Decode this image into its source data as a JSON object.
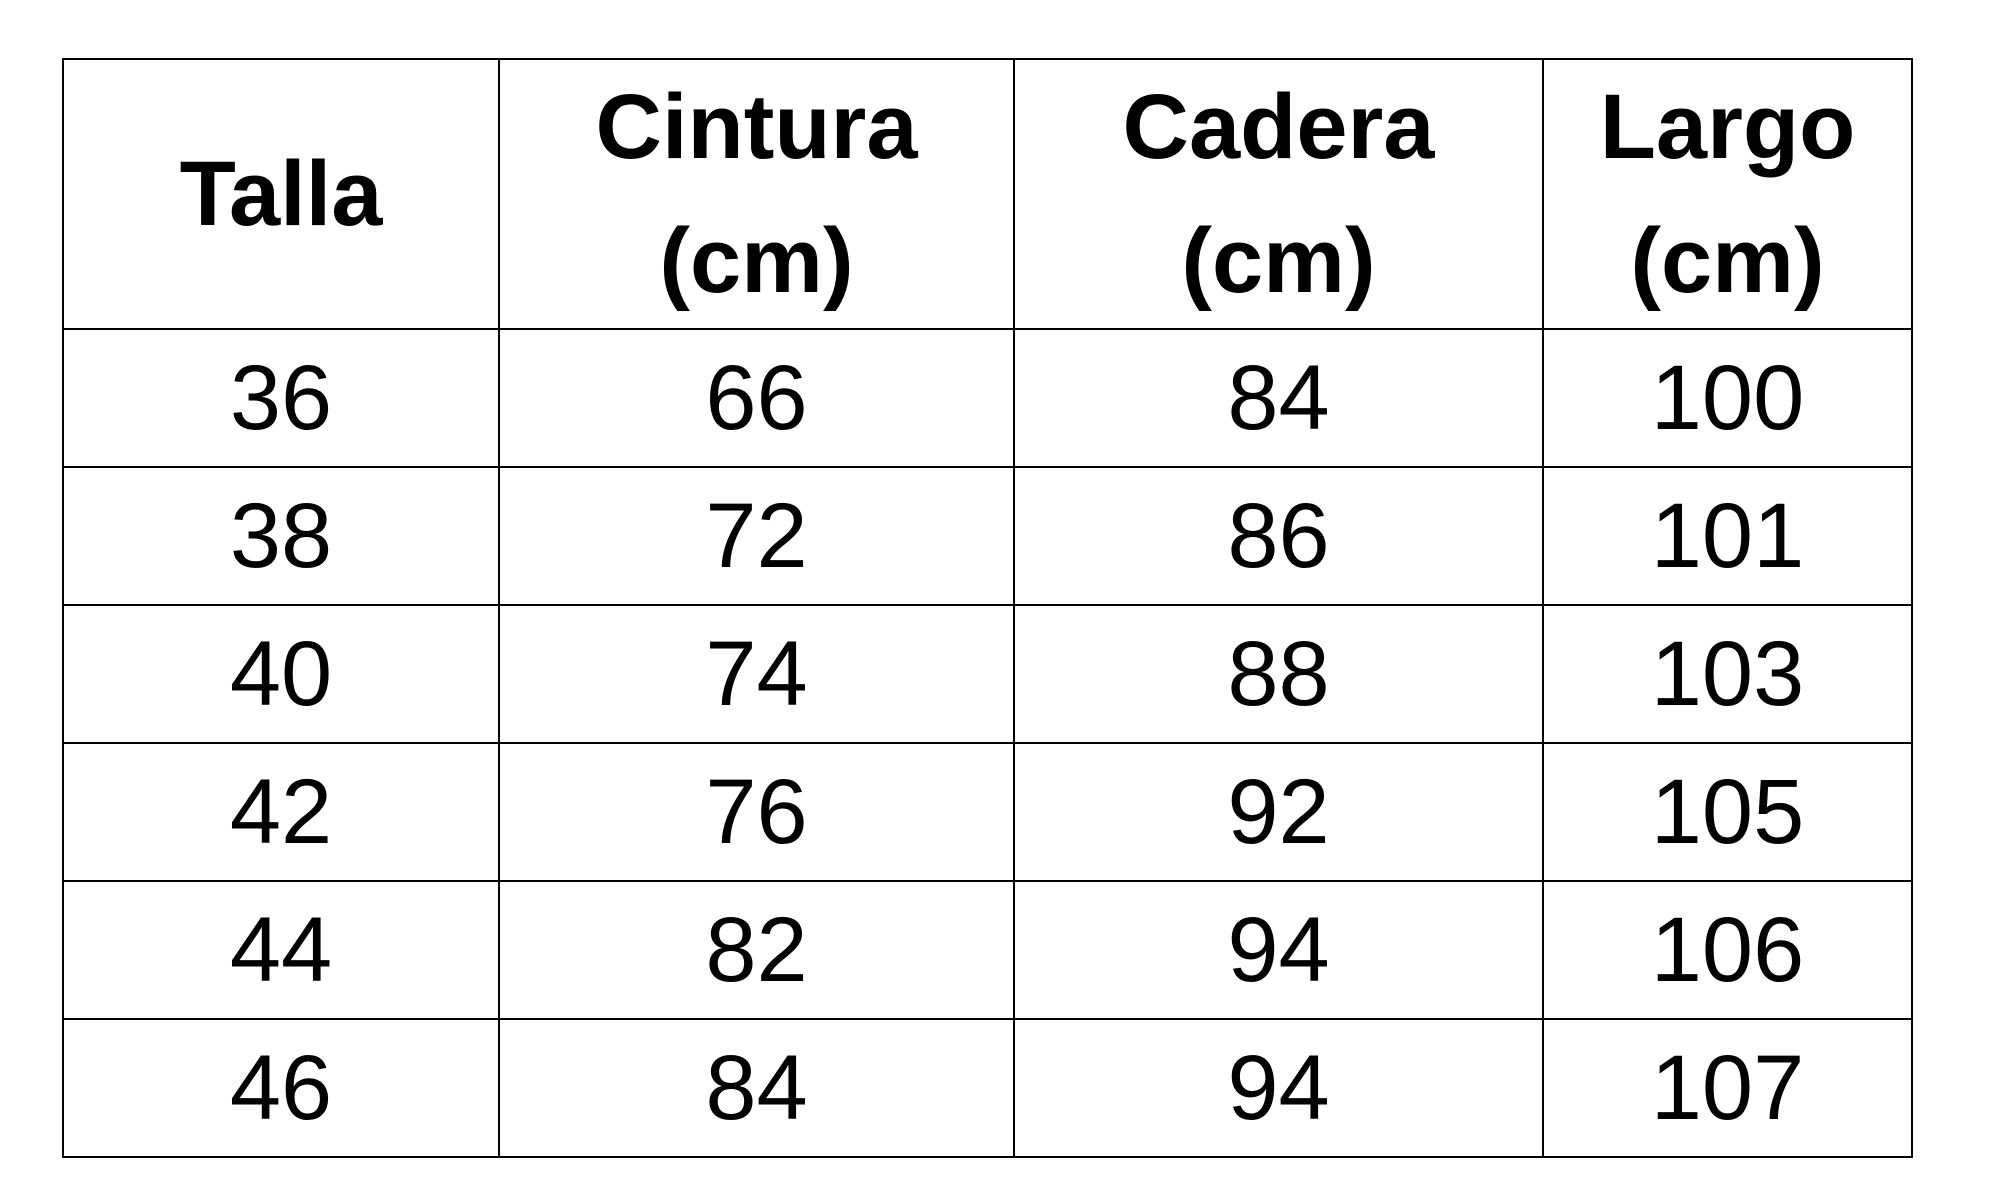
{
  "table": {
    "headers": [
      {
        "line1": "Talla",
        "line2": ""
      },
      {
        "line1": "Cintura",
        "line2": "(cm)"
      },
      {
        "line1": "Cadera",
        "line2": "(cm)"
      },
      {
        "line1": "Largo",
        "line2": "(cm)"
      }
    ],
    "rows": [
      [
        "36",
        "66",
        "84",
        "100"
      ],
      [
        "38",
        "72",
        "86",
        "101"
      ],
      [
        "40",
        "74",
        "88",
        "103"
      ],
      [
        "42",
        "76",
        "92",
        "105"
      ],
      [
        "44",
        "82",
        "94",
        "106"
      ],
      [
        "46",
        "84",
        "94",
        "107"
      ]
    ]
  }
}
